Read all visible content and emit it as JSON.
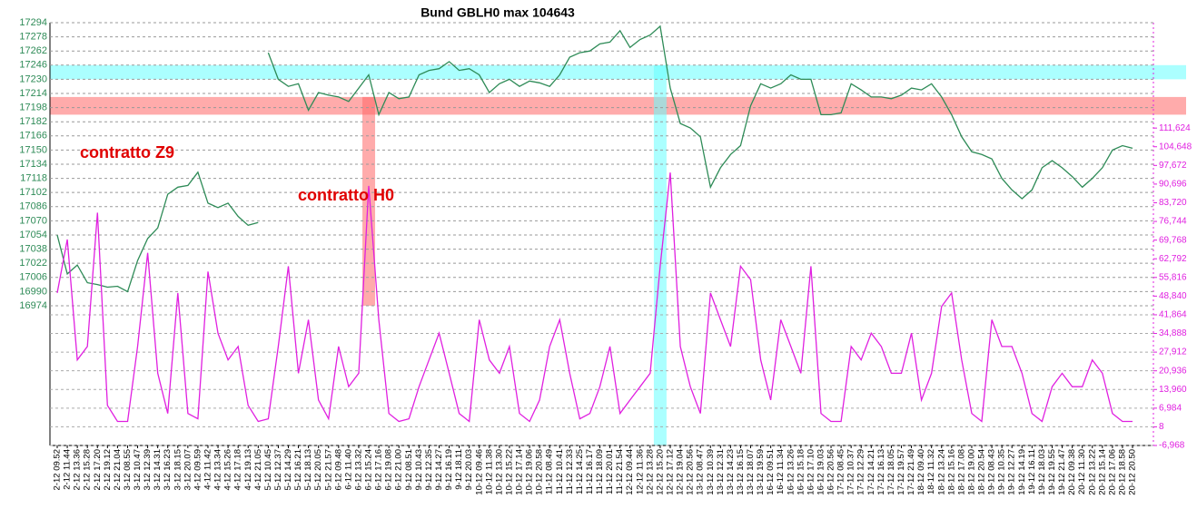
{
  "chart_data": {
    "type": "line",
    "title": "Bund GBLH0 max 104643",
    "annotations": [
      {
        "text": "contratto Z9",
        "color": "#e00000"
      },
      {
        "text": "contratto H0",
        "color": "#e00000"
      }
    ],
    "categories": [
      "2-12 09.52",
      "2-12 11.44",
      "2-12 13.36",
      "2-12 15.28",
      "2-12 17.20",
      "2-12 19.12",
      "2-12 21.04",
      "3-12 08.55",
      "3-12 10.47",
      "3-12 12.39",
      "3-12 14.31",
      "3-12 16.23",
      "3-12 18.15",
      "3-12 20.07",
      "4-12 09.59",
      "4-12 11.42",
      "4-12 13.34",
      "4-12 15.26",
      "4-12 17.18",
      "4-12 19.13",
      "4-12 21.05",
      "5-12 10.45",
      "5-12 12.37",
      "5-12 14.29",
      "5-12 16.21",
      "5-12 18.13",
      "5-12 20.05",
      "5-12 21.57",
      "6-12 09.48",
      "6-12 11.40",
      "6-12 13.32",
      "6-12 15.24",
      "6-12 17.16",
      "6-12 19.08",
      "6-12 21.00",
      "9-12 08.51",
      "9-12 10.43",
      "9-12 12.35",
      "9-12 14.27",
      "9-12 16.19",
      "9-12 18.11",
      "9-12 20.03",
      "10-12 09.46",
      "10-12 11.38",
      "10-12 13.30",
      "10-12 15.22",
      "10-12 17.14",
      "10-12 19.06",
      "10-12 20.58",
      "11-12 08.49",
      "11-12 10.41",
      "11-12 12.33",
      "11-12 14.25",
      "11-12 16.17",
      "11-12 18.09",
      "11-12 20.01",
      "11-12 21.54",
      "12-12 09.44",
      "12-12 11.36",
      "12-12 13.28",
      "12-12 15.20",
      "12-12 17.12",
      "12-12 19.04",
      "12-12 20.56",
      "13-12 08.47",
      "13-12 10.39",
      "13-12 12.31",
      "13-12 14.23",
      "13-12 16.15",
      "13-12 18.07",
      "13-12 19.59",
      "16-12 09.51",
      "16-12 11.34",
      "16-12 13.26",
      "16-12 15.18",
      "16-12 17.10",
      "16-12 19.03",
      "16-12 20.56",
      "17-12 08.45",
      "17-12 10.37",
      "17-12 12.29",
      "17-12 14.21",
      "17-12 16.13",
      "17-12 18.05",
      "17-12 19.57",
      "17-12 21.49",
      "18-12 09.40",
      "18-12 11.32",
      "18-12 13.24",
      "18-12 15.16",
      "18-12 17.08",
      "18-12 19.00",
      "18-12 20.54",
      "19-12 08.43",
      "19-12 10.35",
      "19-12 12.27",
      "19-12 14.19",
      "19-12 16.11",
      "19-12 18.03",
      "19-12 19.55",
      "19-12 21.47",
      "20-12 09.38",
      "20-12 11.30",
      "20-12 13.22",
      "20-12 15.14",
      "20-12 17.06",
      "20-12 18.58",
      "20-12 20.50"
    ],
    "series": [
      {
        "color": "#2e8b57",
        "values": [
          17054,
          17010,
          17020,
          17000,
          16998,
          16995,
          16996,
          16990,
          17025,
          17050,
          17062,
          17100,
          17108,
          17110,
          17125,
          17090,
          17085,
          17090,
          17075,
          17065,
          17068,
          null,
          null,
          null,
          null,
          null,
          null,
          null,
          null,
          null,
          null,
          null,
          null,
          null,
          null,
          null,
          null,
          null,
          null,
          null,
          null,
          null,
          null,
          null,
          null,
          null,
          null,
          null,
          null,
          null,
          null,
          null,
          null,
          null,
          null,
          null,
          null,
          null,
          null,
          null,
          null,
          null,
          null,
          null,
          null,
          null,
          null,
          null,
          null,
          null,
          null,
          null,
          null,
          null,
          null,
          null,
          null,
          null,
          null,
          null,
          null,
          null,
          null,
          null,
          null,
          null,
          null,
          null,
          null,
          null,
          null,
          null,
          null,
          null,
          null,
          null,
          null,
          null,
          null,
          null,
          null,
          null,
          null,
          null,
          null,
          null,
          null,
          null
        ]
      },
      {
        "color": "#2e8b57",
        "values": [
          null,
          null,
          null,
          null,
          null,
          null,
          null,
          null,
          null,
          null,
          null,
          null,
          null,
          null,
          null,
          null,
          null,
          null,
          null,
          null,
          null,
          17260,
          17230,
          17222,
          17225,
          17195,
          17215,
          17212,
          17210,
          17205,
          17220,
          17235,
          17190,
          17215,
          17208,
          17210,
          17235,
          17240,
          17242,
          17250,
          17240,
          17242,
          17235,
          17215,
          17225,
          17230,
          17222,
          17228,
          17226,
          17222,
          17235,
          17255,
          17260,
          17262,
          17270,
          17272,
          17285,
          17266,
          17275,
          17280,
          17290,
          17220,
          17180,
          17175,
          17165,
          17108,
          17130,
          17145,
          17155,
          17200,
          17225,
          17220,
          17225,
          17235,
          17230,
          17230,
          17190,
          17190,
          17192,
          17225,
          17218,
          17210,
          17210,
          17208,
          17212,
          17220,
          17218,
          17225,
          17210,
          17190,
          17165,
          17148,
          17145,
          17140,
          17118,
          17105,
          17095,
          17105,
          17130,
          17138,
          17130,
          17120,
          17108,
          17118,
          17130,
          17150,
          17155,
          17152
        ]
      },
      {
        "color": "#e020e0",
        "axis": "y2",
        "values": [
          50000,
          70000,
          25000,
          30000,
          80000,
          8000,
          2000,
          2000,
          30000,
          65000,
          20000,
          5000,
          50000,
          5000,
          3000,
          58000,
          35000,
          25000,
          30000,
          8000,
          2000,
          3000,
          30000,
          60000,
          20000,
          40000,
          10000,
          3000,
          30000,
          15000,
          20000,
          90000,
          40000,
          5000,
          2000,
          3000,
          15000,
          25000,
          35000,
          20000,
          5000,
          2000,
          40000,
          25000,
          20000,
          30000,
          5000,
          2000,
          10000,
          30000,
          40000,
          20000,
          3000,
          5000,
          15000,
          30000,
          5000,
          10000,
          15000,
          20000,
          60000,
          95000,
          30000,
          15000,
          5000,
          50000,
          40000,
          30000,
          60000,
          55000,
          25000,
          10000,
          40000,
          30000,
          20000,
          60000,
          5000,
          2000,
          2000,
          30000,
          25000,
          35000,
          30000,
          20000,
          20000,
          35000,
          10000,
          20000,
          45000,
          50000,
          25000,
          5000,
          2000,
          40000,
          30000,
          30000,
          20000,
          5000,
          2000,
          15000,
          20000,
          15000,
          15000,
          25000,
          20000,
          5000,
          2000,
          2000
        ]
      }
    ],
    "ylim": [
      16816,
      17294
    ],
    "yticks": [
      16974,
      16990,
      17006,
      17022,
      17038,
      17054,
      17070,
      17086,
      17102,
      17118,
      17134,
      17150,
      17166,
      17182,
      17198,
      17214,
      17230,
      17246,
      17262,
      17278,
      17294
    ],
    "ytick_color": "#2e8b57",
    "y2lim": [
      -6968,
      151000
    ],
    "y2ticks": [
      {
        "value": -6968,
        "label": "-6,968"
      },
      8,
      {
        "value": 6984,
        "label": "6,984"
      },
      {
        "value": 13960,
        "label": "13,960"
      },
      {
        "value": 20936,
        "label": "20,936"
      },
      {
        "value": 27912,
        "label": "27,912"
      },
      {
        "value": 34888,
        "label": "34,888"
      },
      {
        "value": 41864,
        "label": "41,864"
      },
      {
        "value": 48840,
        "label": "48,840"
      },
      {
        "value": 55816,
        "label": "55,816"
      },
      {
        "value": 62792,
        "label": "62,792"
      },
      {
        "value": 69768,
        "label": "69,768"
      },
      {
        "value": 76744,
        "label": "76,744"
      },
      {
        "value": 83720,
        "label": "83,720"
      },
      {
        "value": 90696,
        "label": "90,696"
      },
      {
        "value": 97672,
        "label": "97,672"
      },
      {
        "value": 104648,
        "label": "104,648"
      },
      {
        "value": 111624,
        "label": "111,624"
      }
    ],
    "y2tick_color": "#e020e0",
    "grid": true,
    "hbands": [
      {
        "from": 17230,
        "to": 17246,
        "color": "#66ffff"
      },
      {
        "from": 17190,
        "to": 17210,
        "color": "#ff6666"
      }
    ],
    "vbands": [
      {
        "at": "6-12 15.24",
        "color": "#ff6666"
      },
      {
        "at": "12-12 15.20",
        "color": "#66ffff"
      }
    ]
  }
}
